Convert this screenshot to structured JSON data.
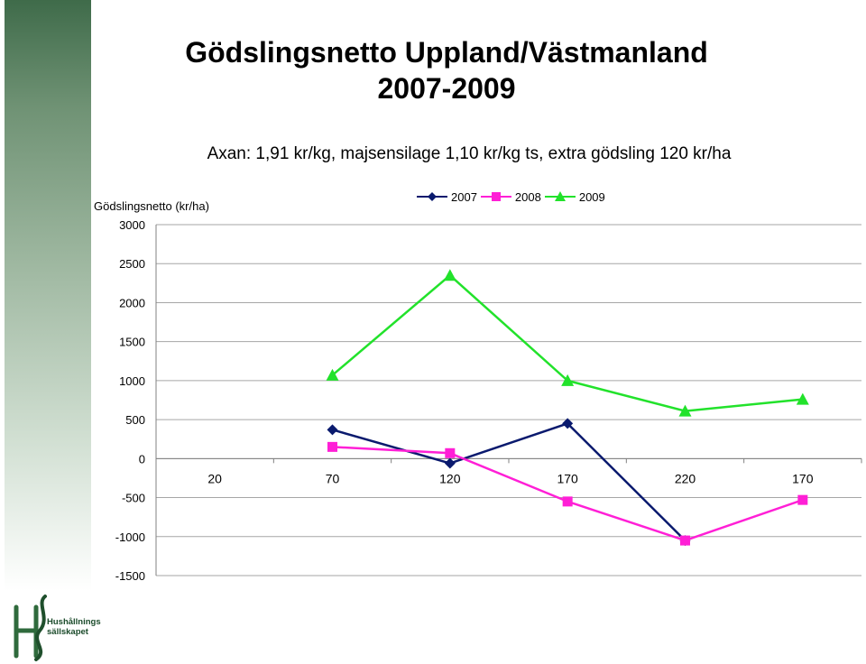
{
  "slide": {
    "title_line1": "Gödslingsnetto Uppland/Västmanland",
    "title_line2": "2007-2009",
    "subtitle": "Axan: 1,91 kr/kg, majsensilage 1,10 kr/kg ts, extra gödsling 120 kr/ha",
    "logo_text_line1": "Hushållnings",
    "logo_text_line2": "sällskapet"
  },
  "colors": {
    "series_2007": "#0a1a6e",
    "series_2008": "#ff1fd6",
    "series_2009": "#22e22b",
    "grid": "#a6a6a6"
  },
  "chart_data": {
    "type": "line",
    "title": "",
    "ylabel": "Gödslingsnetto (kr/ha)",
    "xlabel": "",
    "categories": [
      "20",
      "70",
      "120",
      "170",
      "220",
      "170"
    ],
    "ylim": [
      -1500,
      3000
    ],
    "yticks": [
      3000,
      2500,
      2000,
      1500,
      1000,
      500,
      0,
      -500,
      -1000,
      -1500
    ],
    "grid": true,
    "legend_position": "top",
    "series": [
      {
        "name": "2007",
        "marker": "diamond",
        "values": [
          null,
          370,
          -60,
          450,
          -1050,
          null
        ]
      },
      {
        "name": "2008",
        "marker": "square",
        "values": [
          null,
          150,
          70,
          -550,
          -1050,
          -530
        ]
      },
      {
        "name": "2009",
        "marker": "triangle",
        "values": [
          null,
          1070,
          2350,
          1000,
          610,
          760
        ]
      }
    ]
  }
}
